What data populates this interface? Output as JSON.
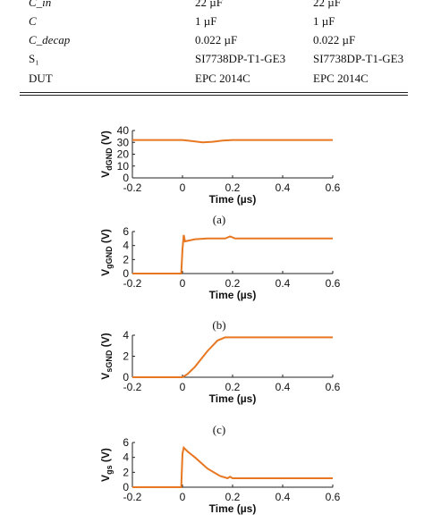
{
  "table": {
    "rows": [
      {
        "param": "C_in",
        "col1": "22 µF",
        "col2": "22 µF"
      },
      {
        "param": "C",
        "col1": "1 µF",
        "col2": "1 µF"
      },
      {
        "param": "C_decap",
        "col1": "0.022 µF",
        "col2": "0.022 µF"
      },
      {
        "param": "S₁",
        "col1": "SI7738DP-T1-GE3",
        "col2": "SI7738DP-T1-GE3"
      },
      {
        "param": "DUT",
        "col1": "EPC 2014C",
        "col2": "EPC 2014C"
      }
    ]
  },
  "colors": {
    "trace": "#e87722",
    "axis": "#222222"
  },
  "chart_data": [
    {
      "type": "line",
      "caption": "(a)",
      "xlabel": "Time (µs)",
      "ylabel": "V_dGND (V)",
      "xlim": [
        -0.2,
        0.6
      ],
      "ylim": [
        0,
        40
      ],
      "xticks": [
        "-0.2",
        "0",
        "0.2",
        "0.4",
        "0.6"
      ],
      "yticks": [
        "0",
        "10",
        "20",
        "30",
        "40"
      ],
      "series": [
        {
          "x": [
            -0.2,
            0.0,
            0.04,
            0.08,
            0.12,
            0.16,
            0.2,
            0.6
          ],
          "y": [
            32,
            32,
            31,
            30,
            30.5,
            31.5,
            32,
            32
          ]
        }
      ]
    },
    {
      "type": "line",
      "caption": "(b)",
      "xlabel": "Time (µs)",
      "ylabel": "V_gGND (V)",
      "xlim": [
        -0.2,
        0.6
      ],
      "ylim": [
        0,
        6
      ],
      "xticks": [
        "-0.2",
        "0",
        "0.2",
        "0.4",
        "0.6"
      ],
      "yticks": [
        "0",
        "2",
        "4",
        "6"
      ],
      "series": [
        {
          "x": [
            -0.2,
            -0.005,
            0.0,
            0.005,
            0.01,
            0.05,
            0.1,
            0.17,
            0.19,
            0.21,
            0.6
          ],
          "y": [
            0,
            0,
            3.5,
            5.5,
            4.6,
            4.9,
            5.0,
            5.0,
            5.3,
            5.0,
            5.0
          ]
        }
      ]
    },
    {
      "type": "line",
      "caption": "(c)",
      "xlabel": "Time (µs)",
      "ylabel": "V_sGND (V)",
      "xlim": [
        -0.2,
        0.6
      ],
      "ylim": [
        0,
        4
      ],
      "xticks": [
        "-0.2",
        "0",
        "0.2",
        "0.4",
        "0.6"
      ],
      "yticks": [
        "0",
        "2",
        "4"
      ],
      "series": [
        {
          "x": [
            -0.2,
            0.0,
            0.02,
            0.05,
            0.1,
            0.14,
            0.17,
            0.2,
            0.6
          ],
          "y": [
            0,
            0,
            0.3,
            1.0,
            2.5,
            3.5,
            3.8,
            3.8,
            3.8
          ]
        }
      ]
    },
    {
      "type": "line",
      "caption": "",
      "xlabel": "Time (µs)",
      "ylabel": "V_gs (V)",
      "xlim": [
        -0.2,
        0.6
      ],
      "ylim": [
        0,
        6
      ],
      "xticks": [
        "-0.2",
        "0",
        "0.2",
        "0.4",
        "0.6"
      ],
      "yticks": [
        "0",
        "2",
        "4",
        "6"
      ],
      "series": [
        {
          "x": [
            -0.2,
            -0.005,
            0.0,
            0.005,
            0.02,
            0.05,
            0.1,
            0.15,
            0.18,
            0.19,
            0.2,
            0.6
          ],
          "y": [
            0,
            0,
            4.5,
            5.3,
            4.8,
            4.0,
            2.5,
            1.5,
            1.2,
            1.4,
            1.2,
            1.2
          ]
        }
      ]
    }
  ]
}
